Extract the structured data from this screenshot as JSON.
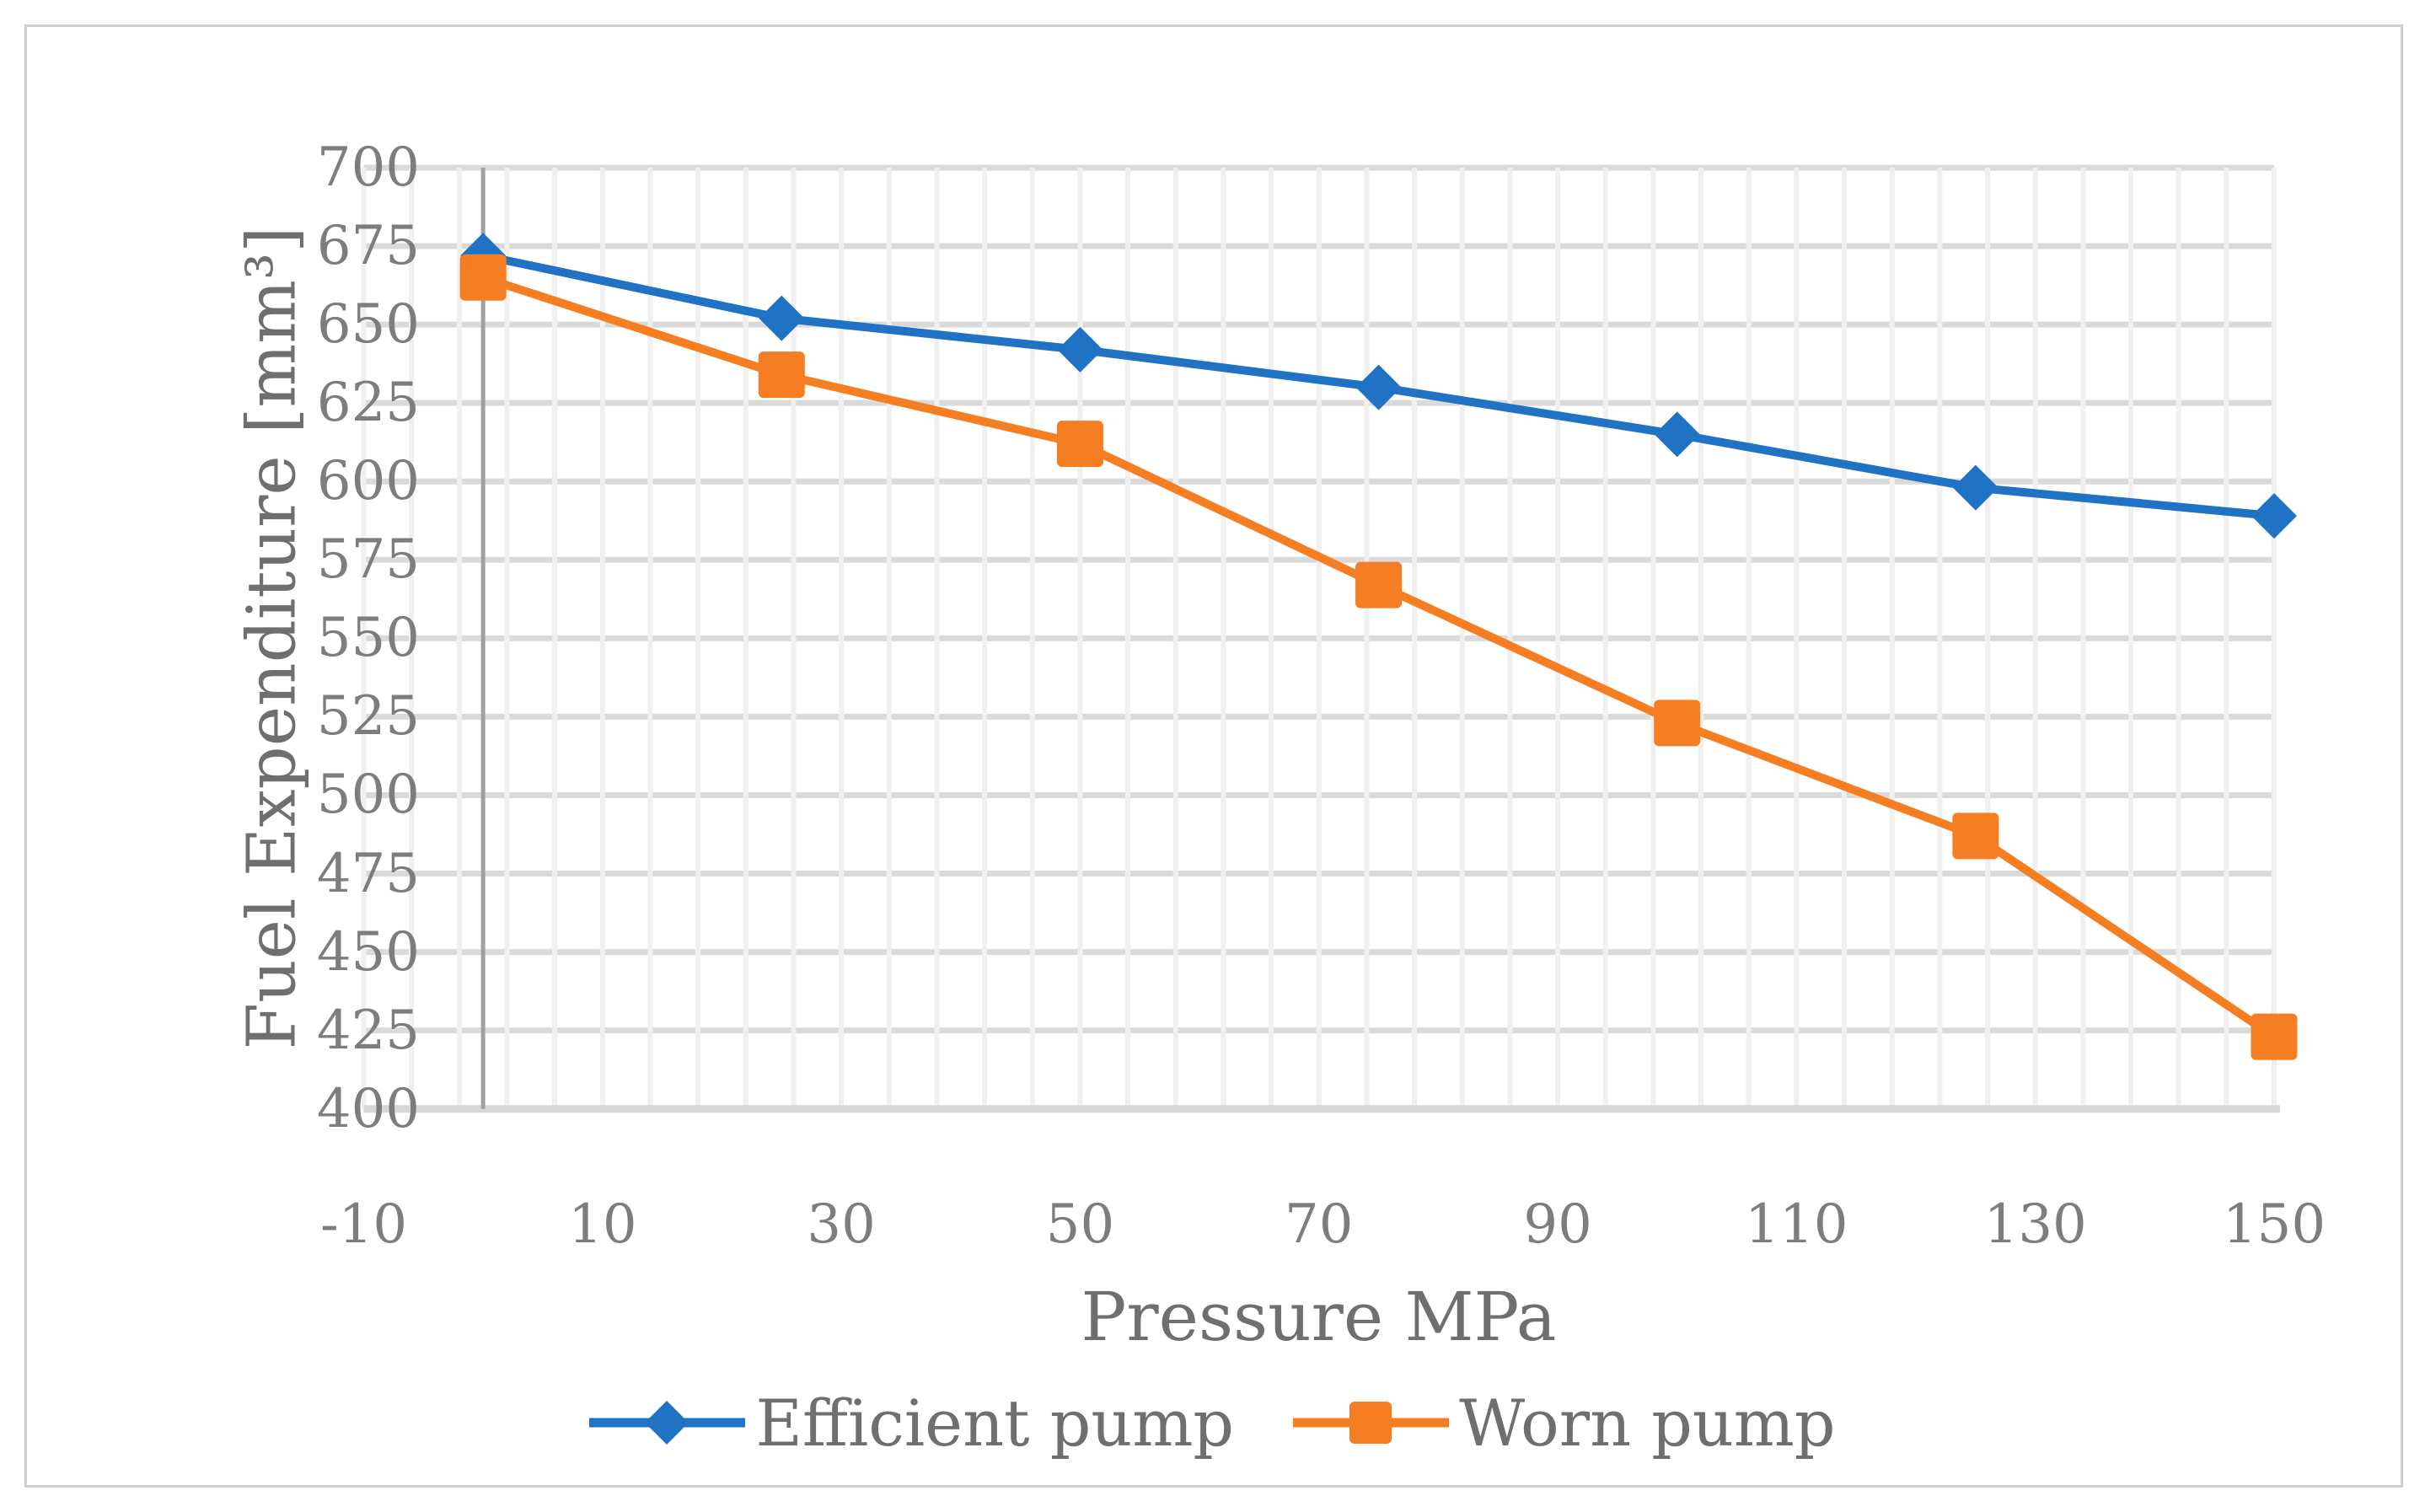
{
  "chart_data": {
    "type": "line",
    "title": "",
    "xlabel": "Pressure MPa",
    "ylabel": "Fuel Expenditure [mm³]",
    "x": [
      0,
      25,
      50,
      75,
      100,
      125,
      150
    ],
    "series": [
      {
        "name": "Efficient pump",
        "marker": "diamond",
        "color": "#1f72c4",
        "values": [
          672,
          652,
          642,
          630,
          615,
          598,
          589
        ]
      },
      {
        "name": "Worn pump",
        "marker": "square",
        "color": "#f67e22",
        "values": [
          665,
          634,
          612,
          567,
          523,
          487,
          423
        ]
      }
    ],
    "xlim": [
      -10,
      150
    ],
    "ylim": [
      400,
      700
    ],
    "x_tick_values": [
      -10,
      10,
      30,
      50,
      70,
      90,
      110,
      130,
      150
    ],
    "y_tick_values": [
      400,
      425,
      450,
      475,
      500,
      525,
      550,
      575,
      600,
      625,
      650,
      675,
      700
    ],
    "x_minor_step": 4,
    "y_major_step": 25,
    "grid": "both",
    "legend_position": "bottom"
  },
  "styles": {
    "background": "#ffffff",
    "border_color": "#cfcfcf",
    "grid_vertical_color": "#f0f0f0",
    "grid_horizontal_color": "#dadada",
    "axis_x_line_color": "#d8d8d8",
    "axis_y_line_color": "#a0a0a0",
    "tick_label_color": "#7d7d7d",
    "title_color": "#6f6f6f"
  }
}
